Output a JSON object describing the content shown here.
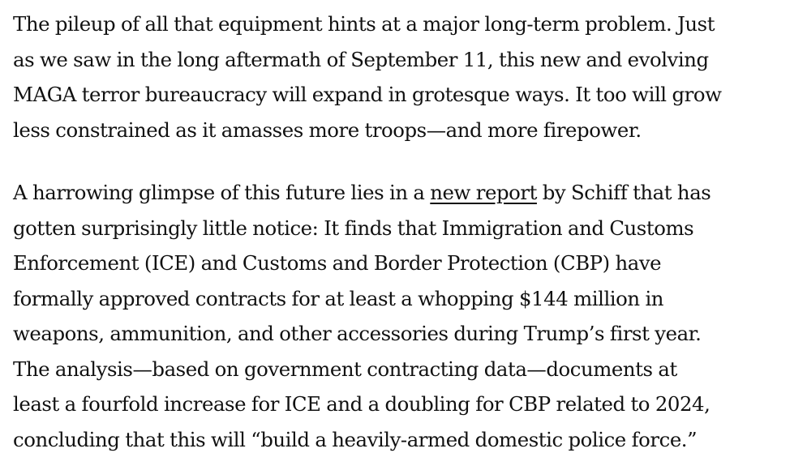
{
  "article": {
    "paragraph_1": {
      "lines": [
        "The pileup of all that equipment hints at a major long-term problem. Just",
        "as we saw in the long aftermath of September 11, this new and evolving",
        "MAGA terror bureaucracy will expand in grotesque ways. It too will grow",
        "less constrained as it amasses more troops—and more firepower."
      ]
    },
    "paragraph_2": {
      "line_1_before_link": "A harrowing glimpse of this future lies in a ",
      "link_text": "new report",
      "line_1_after_link": " by Schiff that has",
      "lines": [
        "gotten surprisingly little notice: It finds that Immigration and Customs",
        "Enforcement (ICE) and Customs and Border Protection (CBP) have",
        "formally approved contracts for at least a whopping $144 million in",
        "weapons, ammunition, and other accessories during Trump’s first year.",
        "The analysis—based on government contracting data—documents at",
        "least a fourfold increase for ICE and a doubling for CBP related to 2024,",
        "concluding that this will “build a heavily-armed domestic police force.”"
      ]
    }
  }
}
